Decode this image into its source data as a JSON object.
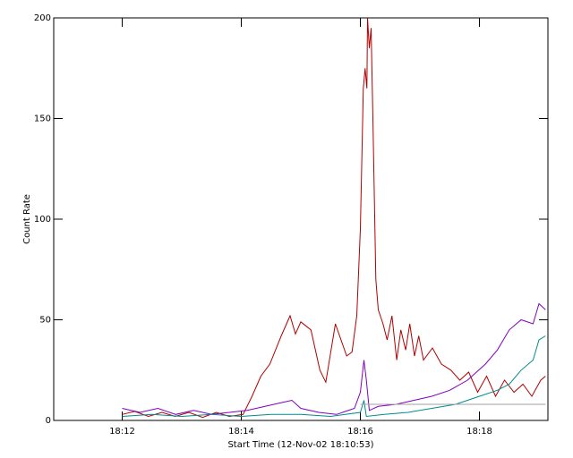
{
  "chart_data": {
    "type": "line",
    "ylabel": "Count Rate",
    "xlabel": "Start Time (12-Nov-02 18:10:53)",
    "xlim": [
      10.85,
      19.15
    ],
    "xticks": [
      {
        "value": 12,
        "label": "18:12"
      },
      {
        "value": 14,
        "label": "18:14"
      },
      {
        "value": 16,
        "label": "18:16"
      },
      {
        "value": 18,
        "label": "18:18"
      }
    ],
    "ylim": [
      0,
      200
    ],
    "yticks": [
      0,
      50,
      100,
      150,
      200
    ],
    "series": [
      {
        "color": "#b00000",
        "x": [
          12.0,
          12.21,
          12.44,
          12.67,
          12.89,
          13.12,
          13.35,
          13.58,
          13.8,
          14.03,
          14.18,
          14.33,
          14.48,
          14.67,
          14.82,
          14.91,
          15.0,
          15.17,
          15.32,
          15.42,
          15.58,
          15.77,
          15.86,
          15.94,
          16.0,
          16.05,
          16.08,
          16.11,
          16.12,
          16.15,
          16.18,
          16.21,
          16.26,
          16.3,
          16.38,
          16.45,
          16.53,
          16.61,
          16.68,
          16.76,
          16.83,
          16.91,
          16.98,
          17.06,
          17.21,
          17.36,
          17.52,
          17.67,
          17.82,
          17.97,
          18.12,
          18.27,
          18.42,
          18.58,
          18.73,
          18.88,
          19.03,
          19.11
        ],
        "values": [
          3,
          4.5,
          2,
          4,
          2,
          4,
          1.5,
          4,
          2,
          3,
          12,
          22,
          28,
          42,
          52,
          43,
          49,
          45,
          25,
          19,
          48,
          32,
          34,
          52,
          95,
          165,
          175,
          165,
          200,
          185,
          195,
          150,
          70,
          55,
          48,
          40,
          52,
          30,
          45,
          35,
          48,
          32,
          42,
          30,
          36,
          28,
          25,
          20,
          24,
          14,
          22,
          12,
          20,
          14,
          18,
          12,
          20,
          22
        ]
      },
      {
        "color": "#7f00c0",
        "x": [
          12.0,
          12.3,
          12.6,
          12.9,
          13.2,
          13.5,
          13.8,
          14.1,
          14.4,
          14.7,
          14.85,
          15.0,
          15.3,
          15.6,
          15.9,
          16.0,
          16.06,
          16.1,
          16.15,
          16.3,
          16.6,
          16.9,
          17.2,
          17.5,
          17.8,
          18.1,
          18.3,
          18.5,
          18.7,
          18.9,
          19.0,
          19.11
        ],
        "values": [
          6,
          4,
          6,
          3,
          5,
          3,
          4,
          5,
          7,
          9,
          10,
          6,
          4,
          3,
          6,
          14,
          30,
          20,
          5,
          7,
          8,
          10,
          12,
          15,
          20,
          28,
          35,
          45,
          50,
          48,
          58,
          55
        ]
      },
      {
        "color": "#008b8b",
        "x": [
          12.0,
          12.5,
          13.0,
          13.5,
          14.0,
          14.5,
          15.0,
          15.5,
          16.0,
          16.06,
          16.1,
          16.4,
          16.8,
          17.2,
          17.6,
          18.0,
          18.3,
          18.5,
          18.7,
          18.9,
          19.0,
          19.11
        ],
        "values": [
          2,
          3,
          2,
          3,
          2,
          3,
          3,
          2,
          4,
          10,
          2,
          3,
          4,
          6,
          8,
          12,
          15,
          18,
          25,
          30,
          40,
          42
        ]
      },
      {
        "color": "#a0a0a0",
        "x": [
          16.0,
          19.11
        ],
        "values": [
          8,
          8
        ]
      }
    ]
  }
}
